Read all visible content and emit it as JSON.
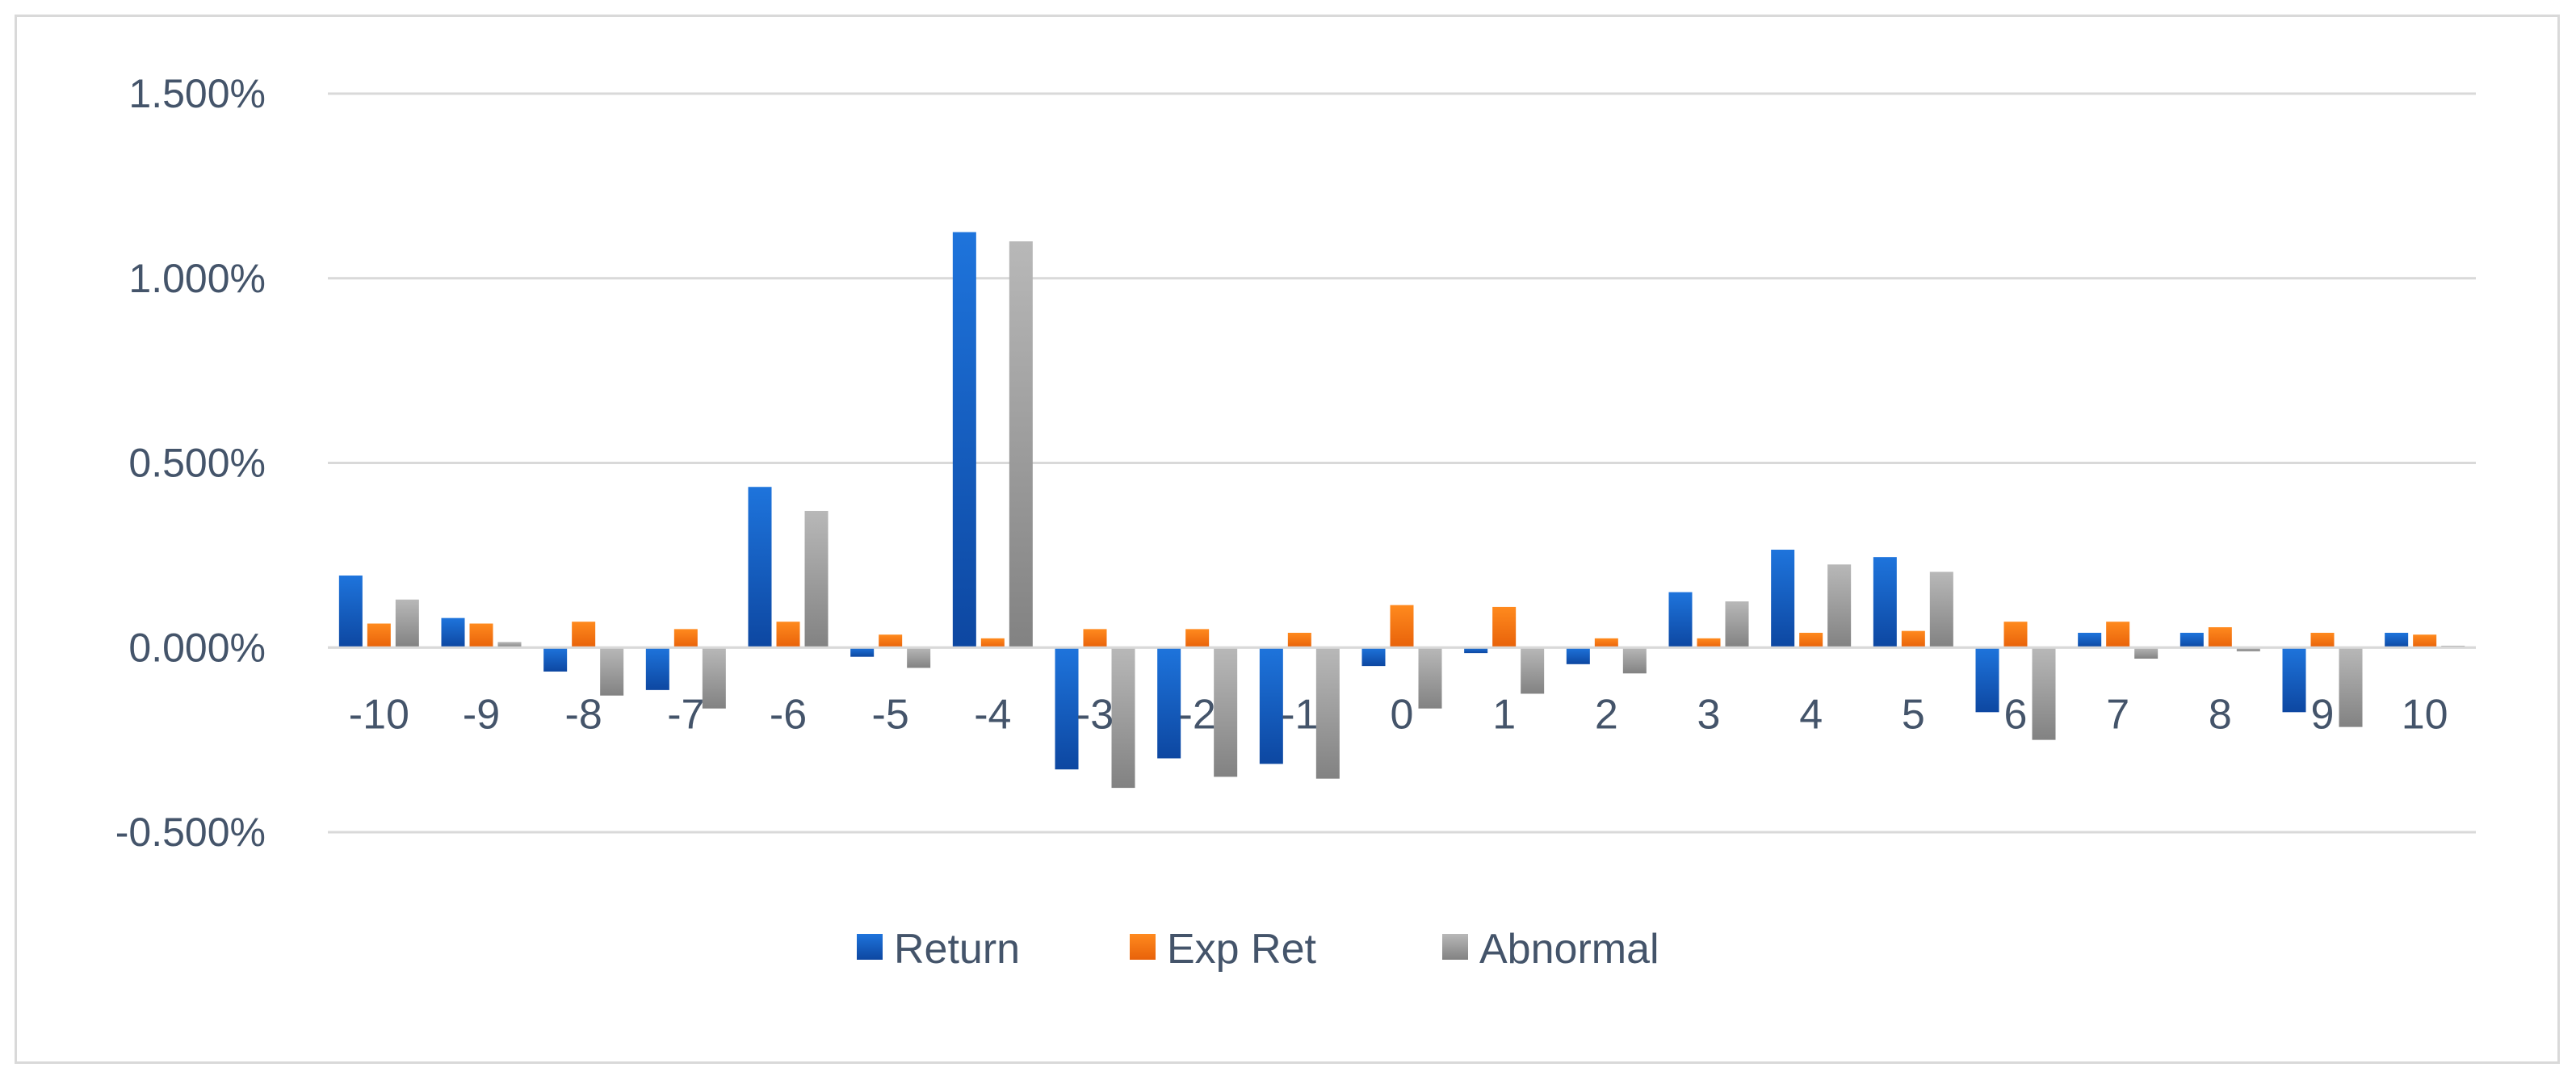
{
  "chart_data": {
    "type": "bar",
    "title": "",
    "xlabel": "",
    "ylabel": "",
    "categories": [
      "-10",
      "-9",
      "-8",
      "-7",
      "-6",
      "-5",
      "-4",
      "-3",
      "-2",
      "-1",
      "0",
      "1",
      "2",
      "3",
      "4",
      "5",
      "6",
      "7",
      "8",
      "9",
      "10"
    ],
    "yticks": [
      "1.500%",
      "1.000%",
      "0.500%",
      "0.000%",
      "-0.500%"
    ],
    "ylim": [
      -0.5,
      1.5
    ],
    "grid": true,
    "legend_position": "bottom",
    "series": [
      {
        "name": "Return",
        "color": "#1565c8",
        "values": [
          0.195,
          0.08,
          -0.065,
          -0.115,
          0.435,
          -0.025,
          1.125,
          -0.33,
          -0.3,
          -0.315,
          -0.05,
          -0.015,
          -0.045,
          0.15,
          0.265,
          0.245,
          -0.175,
          0.04,
          0.04,
          -0.175,
          0.04
        ]
      },
      {
        "name": "Exp Ret",
        "color": "#f4740c",
        "values": [
          0.065,
          0.065,
          0.07,
          0.05,
          0.07,
          0.035,
          0.025,
          0.05,
          0.05,
          0.04,
          0.115,
          0.11,
          0.025,
          0.025,
          0.04,
          0.045,
          0.07,
          0.07,
          0.055,
          0.04,
          0.035
        ]
      },
      {
        "name": "Abnormal",
        "color": "#a0a0a0",
        "values": [
          0.13,
          0.015,
          -0.13,
          -0.165,
          0.37,
          -0.055,
          1.1,
          -0.38,
          -0.35,
          -0.355,
          -0.165,
          -0.125,
          -0.07,
          0.125,
          0.225,
          0.205,
          -0.25,
          -0.03,
          -0.01,
          -0.215,
          0.005
        ]
      }
    ]
  }
}
